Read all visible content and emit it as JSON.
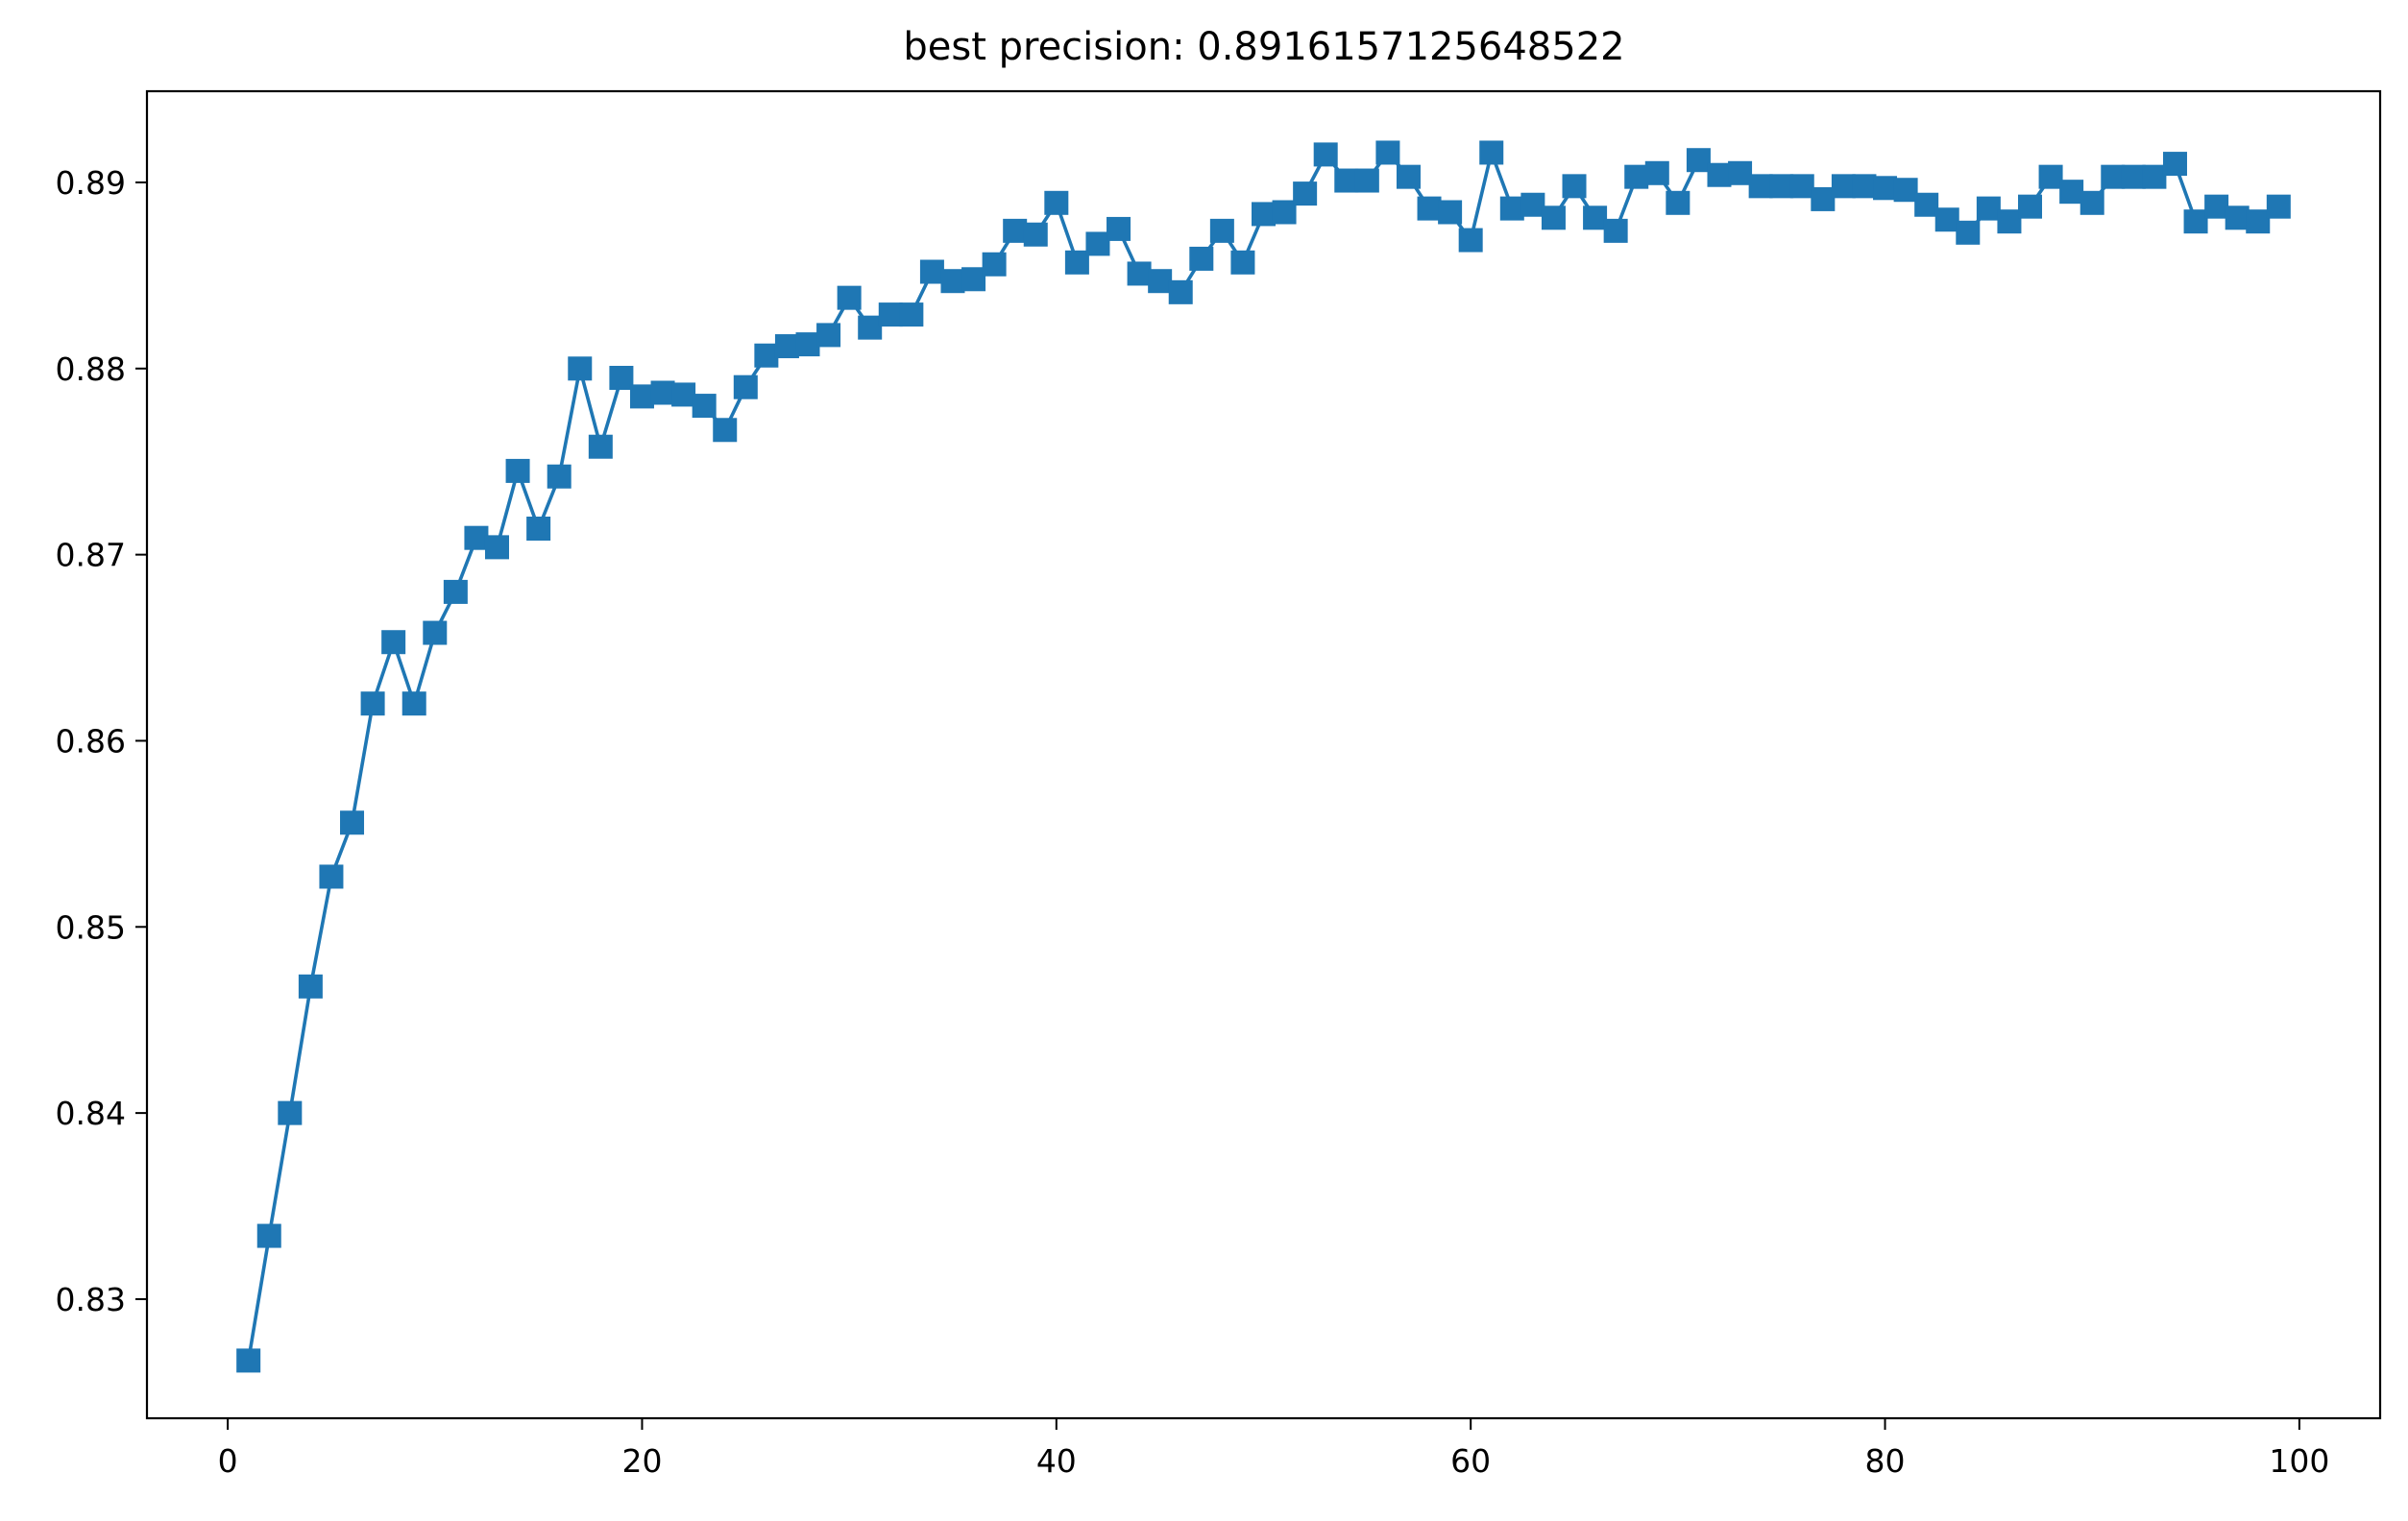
{
  "chart_data": {
    "type": "line",
    "title": "best precision: 0.8916157125648522",
    "xlabel": "",
    "ylabel": "",
    "xlim": [
      -3.9,
      103.9
    ],
    "ylim": [
      0.8236,
      0.8949
    ],
    "grid": false,
    "x_ticks": [
      0,
      20,
      40,
      60,
      80,
      100
    ],
    "y_ticks": [
      0.83,
      0.84,
      0.85,
      0.86,
      0.87,
      0.88,
      0.89
    ],
    "x_tick_labels": [
      "0",
      "20",
      "40",
      "60",
      "80",
      "100"
    ],
    "y_tick_labels": [
      "0.83",
      "0.84",
      "0.85",
      "0.86",
      "0.87",
      "0.88",
      "0.89"
    ],
    "series": [
      {
        "color": "#1f77b4",
        "marker": "square",
        "x": [
          1,
          2,
          3,
          4,
          5,
          6,
          7,
          8,
          9,
          10,
          11,
          12,
          13,
          14,
          15,
          16,
          17,
          18,
          19,
          20,
          21,
          22,
          23,
          24,
          25,
          26,
          27,
          28,
          29,
          30,
          31,
          32,
          33,
          34,
          35,
          36,
          37,
          38,
          39,
          40,
          41,
          42,
          43,
          44,
          45,
          46,
          47,
          48,
          49,
          50,
          51,
          52,
          53,
          54,
          55,
          56,
          57,
          58,
          59,
          60,
          61,
          62,
          63,
          64,
          65,
          66,
          67,
          68,
          69,
          70,
          71,
          72,
          73,
          74,
          75,
          76,
          77,
          78,
          79,
          80,
          81,
          82,
          83,
          84,
          85,
          86,
          87,
          88,
          89,
          90,
          91,
          92,
          93,
          94,
          95,
          96,
          97,
          98,
          99
        ],
        "y": [
          0.8267,
          0.8334,
          0.84,
          0.8468,
          0.8527,
          0.8556,
          0.862,
          0.8653,
          0.862,
          0.8658,
          0.868,
          0.8709,
          0.8704,
          0.8745,
          0.8714,
          0.8742,
          0.88,
          0.8758,
          0.8795,
          0.8785,
          0.8787,
          0.8786,
          0.878,
          0.8767,
          0.879,
          0.8807,
          0.8812,
          0.8813,
          0.8818,
          0.8838,
          0.8822,
          0.8829,
          0.8829,
          0.8852,
          0.8847,
          0.8848,
          0.8856,
          0.8874,
          0.8872,
          0.8889,
          0.8857,
          0.8867,
          0.8875,
          0.8851,
          0.8847,
          0.8841,
          0.8859,
          0.8874,
          0.8857,
          0.8883,
          0.8884,
          0.8894,
          0.8915,
          0.8901,
          0.8901,
          0.8916,
          0.8903,
          0.8886,
          0.8884,
          0.8869,
          0.8916,
          0.8886,
          0.8888,
          0.8881,
          0.8898,
          0.8881,
          0.8874,
          0.8903,
          0.8905,
          0.8889,
          0.8912,
          0.8904,
          0.8905,
          0.8898,
          0.8898,
          0.8898,
          0.8891,
          0.8898,
          0.8898,
          0.8897,
          0.8896,
          0.8888,
          0.888,
          0.8873,
          0.8886,
          0.8879,
          0.8887,
          0.8903,
          0.8895,
          0.8889,
          0.8903,
          0.8903,
          0.8903,
          0.891,
          0.8879,
          0.8887,
          0.8881,
          0.8879,
          0.8887
        ]
      }
    ]
  }
}
